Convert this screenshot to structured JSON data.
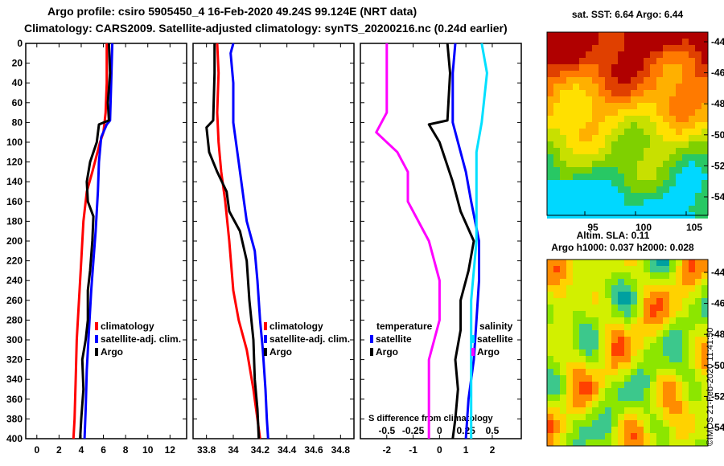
{
  "header": {
    "title_line1": "Argo profile: csiro 5905450_4 16-Feb-2020 49.24S 99.124E (NRT data)",
    "title_line2": "Climatology: CARS2009. Satellite-adjusted climatology: synTS_20200216.nc (0.24d earlier)"
  },
  "stamp": "©IMOS 21-Feb-2020 11:41:50",
  "colors": {
    "climatology": "#ff0000",
    "satellite": "#0000ff",
    "argo": "#000000",
    "salinity_satellite": "#00e0ff",
    "salinity_climatology": "#ff00ff"
  },
  "chart_data": [
    {
      "type": "line",
      "panel": "temperature",
      "xlabel": "",
      "ylabel": "",
      "xlim": [
        -1,
        13.5
      ],
      "ylim": [
        400,
        0
      ],
      "xticks": [
        0,
        2,
        4,
        6,
        8,
        10,
        12
      ],
      "yticks": [
        0,
        20,
        40,
        60,
        80,
        100,
        120,
        140,
        160,
        180,
        200,
        220,
        240,
        260,
        280,
        300,
        320,
        340,
        360,
        380,
        400
      ],
      "legend": [
        "climatology",
        "satellite-adj. clim.",
        "Argo"
      ],
      "series": [
        {
          "name": "climatology",
          "color": "#ff0000",
          "points": [
            [
              6.3,
              0
            ],
            [
              6.3,
              40
            ],
            [
              6.2,
              70
            ],
            [
              6.0,
              90
            ],
            [
              5.7,
              100
            ],
            [
              5.0,
              130
            ],
            [
              4.5,
              150
            ],
            [
              4.2,
              180
            ],
            [
              4.0,
              220
            ],
            [
              3.8,
              260
            ],
            [
              3.6,
              300
            ],
            [
              3.5,
              340
            ],
            [
              3.4,
              380
            ],
            [
              3.3,
              400
            ]
          ]
        },
        {
          "name": "satellite-adj. clim.",
          "color": "#0000ff",
          "points": [
            [
              6.8,
              0
            ],
            [
              6.7,
              40
            ],
            [
              6.6,
              78
            ],
            [
              6.3,
              82
            ],
            [
              5.8,
              95
            ],
            [
              5.6,
              120
            ],
            [
              5.5,
              150
            ],
            [
              5.3,
              190
            ],
            [
              5.1,
              220
            ],
            [
              4.9,
              250
            ],
            [
              4.7,
              290
            ],
            [
              4.5,
              330
            ],
            [
              4.4,
              370
            ],
            [
              4.3,
              400
            ]
          ]
        },
        {
          "name": "Argo",
          "color": "#000000",
          "points": [
            [
              6.5,
              0
            ],
            [
              6.6,
              30
            ],
            [
              6.4,
              60
            ],
            [
              6.5,
              78
            ],
            [
              5.6,
              82
            ],
            [
              5.4,
              100
            ],
            [
              4.8,
              120
            ],
            [
              4.5,
              140
            ],
            [
              4.6,
              160
            ],
            [
              5.1,
              175
            ],
            [
              5.0,
              200
            ],
            [
              4.8,
              230
            ],
            [
              4.6,
              250
            ],
            [
              4.6,
              280
            ],
            [
              4.4,
              300
            ],
            [
              4.1,
              320
            ],
            [
              4.2,
              350
            ],
            [
              4.0,
              380
            ],
            [
              3.9,
              400
            ]
          ]
        }
      ]
    },
    {
      "type": "line",
      "panel": "salinity",
      "xlim": [
        33.7,
        34.9
      ],
      "ylim": [
        400,
        0
      ],
      "xticks": [
        33.8,
        34,
        34.2,
        34.4,
        34.6,
        34.8
      ],
      "legend": [
        "climatology",
        "satellite-adj. clim.",
        "Argo"
      ],
      "series": [
        {
          "name": "climatology",
          "color": "#ff0000",
          "points": [
            [
              33.88,
              0
            ],
            [
              33.89,
              30
            ],
            [
              33.88,
              70
            ],
            [
              33.89,
              100
            ],
            [
              33.91,
              130
            ],
            [
              33.94,
              160
            ],
            [
              33.97,
              200
            ],
            [
              34.0,
              250
            ],
            [
              34.04,
              280
            ],
            [
              34.1,
              310
            ],
            [
              34.15,
              350
            ],
            [
              34.18,
              380
            ],
            [
              34.2,
              400
            ]
          ]
        },
        {
          "name": "satellite-adj. clim.",
          "color": "#0000ff",
          "points": [
            [
              34.0,
              0
            ],
            [
              33.98,
              10
            ],
            [
              34.0,
              40
            ],
            [
              34.0,
              80
            ],
            [
              34.04,
              120
            ],
            [
              34.08,
              160
            ],
            [
              34.1,
              180
            ],
            [
              34.16,
              210
            ],
            [
              34.18,
              240
            ],
            [
              34.2,
              280
            ],
            [
              34.22,
              310
            ],
            [
              34.24,
              350
            ],
            [
              34.25,
              380
            ],
            [
              34.26,
              400
            ]
          ]
        },
        {
          "name": "Argo",
          "color": "#000000",
          "points": [
            [
              33.86,
              0
            ],
            [
              33.86,
              30
            ],
            [
              33.85,
              78
            ],
            [
              33.8,
              85
            ],
            [
              33.82,
              110
            ],
            [
              33.88,
              130
            ],
            [
              33.95,
              150
            ],
            [
              33.97,
              170
            ],
            [
              34.05,
              190
            ],
            [
              34.1,
              220
            ],
            [
              34.12,
              260
            ],
            [
              34.15,
              300
            ],
            [
              34.16,
              340
            ],
            [
              34.18,
              370
            ],
            [
              34.19,
              400
            ]
          ]
        }
      ]
    },
    {
      "type": "line",
      "panel": "difference from climatology",
      "xlim": [
        -3,
        3.1
      ],
      "xlim_s": [
        -0.75,
        0.775
      ],
      "ylim": [
        400,
        0
      ],
      "xticks": [
        -2,
        -1,
        0,
        1,
        2
      ],
      "xticks_s": [
        -0.5,
        -0.25,
        0,
        0.25,
        0.5
      ],
      "annotation": "S difference from climatology",
      "legend_temperature": [
        "temperature",
        "satellite",
        "Argo"
      ],
      "legend_salinity": [
        "salinity",
        "satellite",
        "Argo"
      ],
      "series": [
        {
          "name": "temperature satellite",
          "color": "#0000ff",
          "points": [
            [
              0.6,
              0
            ],
            [
              0.5,
              30
            ],
            [
              0.5,
              80
            ],
            [
              0.7,
              100
            ],
            [
              1.0,
              130
            ],
            [
              1.2,
              160
            ],
            [
              1.5,
              200
            ],
            [
              1.5,
              240
            ],
            [
              1.4,
              280
            ],
            [
              1.3,
              320
            ],
            [
              1.1,
              360
            ],
            [
              1.0,
              400
            ]
          ]
        },
        {
          "name": "temperature Argo",
          "color": "#000000",
          "points": [
            [
              0.3,
              0
            ],
            [
              0.4,
              30
            ],
            [
              0.3,
              78
            ],
            [
              -0.4,
              82
            ],
            [
              0.0,
              100
            ],
            [
              0.5,
              140
            ],
            [
              0.8,
              170
            ],
            [
              1.3,
              200
            ],
            [
              1.1,
              230
            ],
            [
              0.8,
              260
            ],
            [
              0.8,
              290
            ],
            [
              0.6,
              320
            ],
            [
              0.7,
              350
            ],
            [
              0.6,
              380
            ],
            [
              0.5,
              400
            ]
          ]
        },
        {
          "name": "salinity satellite",
          "color": "#00e0ff",
          "points": [
            [
              0.4,
              0
            ],
            [
              0.45,
              30
            ],
            [
              0.4,
              80
            ],
            [
              0.35,
              110
            ],
            [
              0.35,
              160
            ],
            [
              0.35,
              200
            ],
            [
              0.3,
              260
            ],
            [
              0.3,
              320
            ],
            [
              0.3,
              400
            ]
          ]
        },
        {
          "name": "salinity Argo",
          "color": "#ff00ff",
          "points": [
            [
              -0.5,
              0
            ],
            [
              -0.5,
              70
            ],
            [
              -0.6,
              90
            ],
            [
              -0.4,
              110
            ],
            [
              -0.3,
              130
            ],
            [
              -0.3,
              160
            ],
            [
              -0.1,
              200
            ],
            [
              0.0,
              240
            ],
            [
              0.0,
              280
            ],
            [
              -0.1,
              320
            ],
            [
              -0.1,
              360
            ],
            [
              -0.1,
              400
            ]
          ]
        }
      ]
    },
    {
      "type": "heatmap",
      "panel": "satellite SST map",
      "title": "sat. SST: 6.64 Argo: 6.44",
      "xticks": [
        95,
        100,
        105
      ],
      "yticks": [
        -44,
        -46,
        -48,
        -50,
        -52,
        -54
      ]
    },
    {
      "type": "heatmap",
      "panel": "altimetry SLA map",
      "title": "Altim. SLA: 0.11",
      "subtitle": "Argo h1000: 0.037 h2000: 0.028",
      "yticks": [
        -44,
        -46,
        -48,
        -50,
        -52,
        -54
      ]
    }
  ]
}
